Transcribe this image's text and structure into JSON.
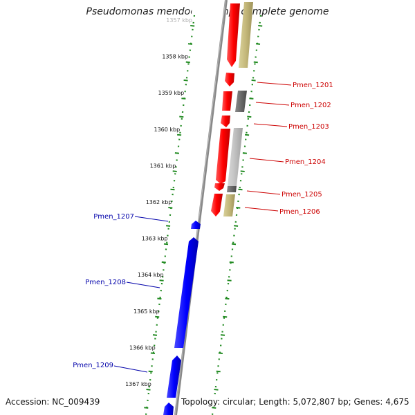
{
  "title": "Pseudomonas mendocina ymp, complete genome",
  "footer": {
    "accession": "Accession: NC_009439",
    "stats": "Topology: circular; Length: 5,072,807 bp; Genes: 4,675"
  },
  "colors": {
    "forward_gene": "#ee0000",
    "reverse_gene": "#0000ee",
    "forward_label": "#cc0000",
    "reverse_label": "#0000aa",
    "tick": "#228b22",
    "backbone": "#888888"
  },
  "kbp_labels": [
    "1357 kbp",
    "1358 kbp",
    "1359 kbp",
    "1360 kbp",
    "1361 kbp",
    "1362 kbp",
    "1363 kbp",
    "1364 kbp",
    "1365 kbp",
    "1366 kbp",
    "1367 kbp"
  ],
  "forward_genes": [
    "Pmen_1201",
    "Pmen_1202",
    "Pmen_1203",
    "Pmen_1204",
    "Pmen_1205",
    "Pmen_1206"
  ],
  "reverse_genes": [
    "Pmen_1207",
    "Pmen_1208",
    "Pmen_1209"
  ]
}
